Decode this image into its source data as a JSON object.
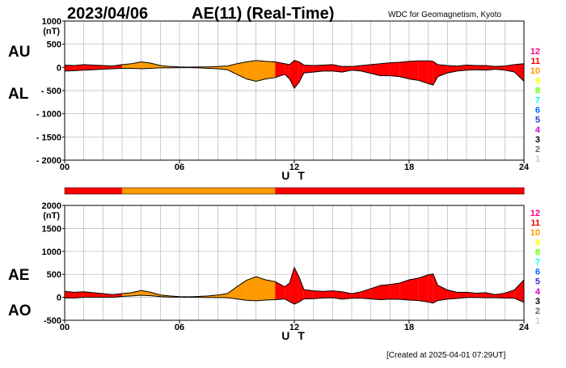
{
  "header": {
    "date": "2023/04/06",
    "title": "AE(11) (Real-Time)",
    "source": "WDC for Geomagnetism, Kyoto",
    "created": "[Created at 2025-04-01 07:29UT]"
  },
  "legend_levels": [
    {
      "label": "12",
      "color": "#ff0080"
    },
    {
      "label": "11",
      "color": "#ff0000"
    },
    {
      "label": "10",
      "color": "#ff9900"
    },
    {
      "label": "9",
      "color": "#ffff00"
    },
    {
      "label": "8",
      "color": "#66ff00"
    },
    {
      "label": "7",
      "color": "#00ffff"
    },
    {
      "label": "6",
      "color": "#0066ff"
    },
    {
      "label": "5",
      "color": "#3333cc"
    },
    {
      "label": "4",
      "color": "#cc00cc"
    },
    {
      "label": "3",
      "color": "#000000"
    },
    {
      "label": "2",
      "color": "#666666"
    },
    {
      "label": "1",
      "color": "#cccccc"
    }
  ],
  "chart_data": [
    {
      "type": "area",
      "panel": "AU/AL",
      "series_labels": {
        "upper": "AU",
        "lower": "AL"
      },
      "ylabel_unit": "(nT)",
      "xlabel": "U T",
      "ylim": [
        -2000,
        1000
      ],
      "y_ticks": [
        "1000",
        "500",
        "0",
        "- 500",
        "- 1000",
        "- 1500",
        "- 2000"
      ],
      "y_tick_values": [
        1000,
        500,
        0,
        -500,
        -1000,
        -1500,
        -2000
      ],
      "x_ticks": [
        "00",
        "06",
        "12",
        "18",
        "24"
      ],
      "x_tick_values": [
        0,
        6,
        12,
        18,
        24
      ],
      "xlim": [
        0,
        24
      ],
      "grid": true,
      "x": [
        0,
        0.5,
        1,
        1.5,
        2,
        2.5,
        3,
        3.5,
        4,
        4.5,
        5,
        5.5,
        6,
        6.5,
        7,
        7.5,
        8,
        8.5,
        9,
        9.5,
        10,
        10.5,
        11,
        11.5,
        11.75,
        12,
        12.25,
        12.5,
        13,
        13.5,
        14,
        14.5,
        15,
        15.5,
        16,
        16.5,
        17,
        17.5,
        18,
        18.5,
        19,
        19.25,
        19.5,
        20,
        20.5,
        21,
        21.5,
        22,
        22.5,
        23,
        23.5,
        24
      ],
      "au": [
        50,
        40,
        60,
        50,
        40,
        30,
        60,
        80,
        120,
        90,
        40,
        20,
        10,
        5,
        10,
        10,
        20,
        30,
        80,
        120,
        150,
        130,
        120,
        80,
        60,
        150,
        120,
        50,
        40,
        50,
        60,
        20,
        20,
        40,
        60,
        80,
        100,
        110,
        130,
        140,
        140,
        130,
        60,
        40,
        30,
        50,
        40,
        40,
        20,
        30,
        60,
        80
      ],
      "al": [
        -80,
        -70,
        -60,
        -50,
        -40,
        -30,
        -20,
        -20,
        -30,
        -20,
        -10,
        -10,
        -5,
        -5,
        -10,
        -20,
        -30,
        -50,
        -150,
        -250,
        -300,
        -250,
        -220,
        -150,
        -250,
        -450,
        -320,
        -120,
        -100,
        -80,
        -80,
        -100,
        -60,
        -80,
        -130,
        -180,
        -180,
        -200,
        -250,
        -280,
        -350,
        -380,
        -200,
        -120,
        -80,
        -60,
        -50,
        -60,
        -40,
        -60,
        -100,
        -300
      ],
      "activity_hours": [
        0,
        1,
        2,
        3,
        4,
        5,
        6,
        7,
        8,
        9,
        10,
        11,
        12,
        13,
        14,
        15,
        16,
        17,
        18,
        19,
        20,
        21,
        22,
        23
      ],
      "activity_level": [
        11,
        11,
        11,
        10,
        10,
        10,
        10,
        10,
        10,
        10,
        10,
        11,
        11,
        11,
        11,
        11,
        11,
        11,
        11,
        11,
        11,
        11,
        11,
        11
      ]
    },
    {
      "type": "area",
      "panel": "AE/AO",
      "series_labels": {
        "upper": "AE",
        "lower": "AO"
      },
      "ylabel_unit": "(nT)",
      "xlabel": "U T",
      "ylim": [
        -500,
        2000
      ],
      "y_ticks": [
        "2000",
        "1500",
        "1000",
        "500",
        "0",
        "-500"
      ],
      "y_tick_values": [
        2000,
        1500,
        1000,
        500,
        0,
        -500
      ],
      "x_ticks": [
        "00",
        "06",
        "12",
        "18",
        "24"
      ],
      "x_tick_values": [
        0,
        6,
        12,
        18,
        24
      ],
      "xlim": [
        0,
        24
      ],
      "grid": true,
      "x": [
        0,
        0.5,
        1,
        1.5,
        2,
        2.5,
        3,
        3.5,
        4,
        4.5,
        5,
        5.5,
        6,
        6.5,
        7,
        7.5,
        8,
        8.5,
        9,
        9.5,
        10,
        10.5,
        11,
        11.5,
        11.75,
        12,
        12.25,
        12.5,
        13,
        13.5,
        14,
        14.5,
        15,
        15.5,
        16,
        16.5,
        17,
        17.5,
        18,
        18.5,
        19,
        19.25,
        19.5,
        20,
        20.5,
        21,
        21.5,
        22,
        22.5,
        23,
        23.5,
        24
      ],
      "ae": [
        130,
        110,
        120,
        100,
        80,
        60,
        80,
        100,
        150,
        110,
        50,
        30,
        15,
        10,
        20,
        30,
        50,
        80,
        230,
        370,
        450,
        380,
        340,
        230,
        310,
        650,
        440,
        170,
        140,
        130,
        140,
        120,
        80,
        120,
        190,
        260,
        280,
        310,
        380,
        420,
        490,
        510,
        260,
        160,
        110,
        110,
        90,
        100,
        60,
        90,
        160,
        380
      ],
      "ao": [
        -15,
        -15,
        0,
        0,
        0,
        0,
        20,
        30,
        45,
        35,
        15,
        5,
        3,
        0,
        0,
        -5,
        -5,
        -10,
        -35,
        -65,
        -75,
        -60,
        -50,
        -35,
        -95,
        -150,
        -100,
        -35,
        -30,
        -15,
        -10,
        -40,
        -20,
        -20,
        -35,
        -50,
        -40,
        -45,
        -60,
        -70,
        -105,
        -125,
        -70,
        -40,
        -25,
        -5,
        -5,
        -10,
        -10,
        -15,
        -20,
        -110
      ]
    }
  ]
}
